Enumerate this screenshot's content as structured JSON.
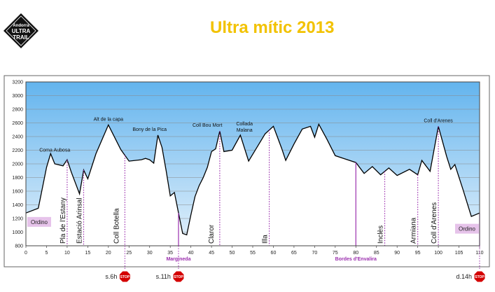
{
  "header": {
    "title": "Ultra mític 2013"
  },
  "logo": {
    "lines": [
      "Andorra",
      "ULTRA",
      "TRAIL"
    ]
  },
  "colors": {
    "title": "#f2c200",
    "profile": "#000000",
    "marker": "#9b2fae",
    "stop": "#d40000",
    "label_box": "#e6c3ea"
  },
  "chart_data": {
    "type": "area",
    "title": "",
    "xlabel": "",
    "ylabel": "",
    "xlim": [
      0,
      110
    ],
    "ylim": [
      800,
      3200
    ],
    "x_ticks": [
      0,
      5,
      10,
      15,
      20,
      25,
      30,
      35,
      40,
      45,
      50,
      55,
      60,
      65,
      70,
      75,
      80,
      85,
      90,
      95,
      100,
      105,
      110
    ],
    "y_ticks": [
      800,
      1000,
      1200,
      1400,
      1600,
      1800,
      2000,
      2200,
      2400,
      2600,
      2800,
      3000,
      3200
    ],
    "grid": true,
    "series": [
      {
        "x": [
          0,
          3,
          5,
          6,
          7,
          9,
          10,
          11,
          12,
          13,
          14,
          15,
          17,
          20,
          23,
          25,
          28,
          29,
          30,
          31,
          32,
          33,
          34,
          35,
          36,
          37,
          38,
          39,
          40,
          41,
          42,
          43,
          44,
          45,
          46,
          47,
          48,
          50,
          52,
          54,
          56,
          58,
          60,
          62,
          63,
          65,
          67,
          69,
          70,
          71,
          73,
          75,
          77,
          80,
          82,
          84,
          86,
          88,
          90,
          93,
          95,
          96,
          98,
          100,
          102,
          103,
          104,
          106,
          108,
          110
        ],
        "y": [
          1280,
          1350,
          1950,
          2150,
          2000,
          1970,
          2060,
          1880,
          1720,
          1560,
          1910,
          1780,
          2150,
          2570,
          2210,
          2040,
          2060,
          2080,
          2060,
          2010,
          2420,
          2240,
          1900,
          1530,
          1580,
          1280,
          980,
          960,
          1250,
          1520,
          1680,
          1800,
          1950,
          2180,
          2220,
          2480,
          2180,
          2200,
          2420,
          2040,
          2240,
          2440,
          2550,
          2230,
          2050,
          2290,
          2510,
          2550,
          2390,
          2580,
          2360,
          2120,
          2080,
          2020,
          1860,
          1960,
          1840,
          1940,
          1830,
          1920,
          1840,
          2050,
          1890,
          2550,
          2110,
          1920,
          1990,
          1620,
          1230,
          1280
        ]
      }
    ],
    "peak_labels": [
      {
        "text": "Coma Aubosa",
        "x": 7,
        "y": 2150
      },
      {
        "text": "Alt de la capa",
        "x": 20,
        "y": 2570
      },
      {
        "text": "Bony de la Pica",
        "x": 30,
        "y": 2420
      },
      {
        "text": "Coll Bou Mort",
        "x": 44,
        "y": 2480
      },
      {
        "text": "Collada",
        "x": 53,
        "y": 2420
      },
      {
        "text": "Malana",
        "x": 53,
        "y": 2420
      },
      {
        "text": "Coll d'Arenes",
        "x": 100,
        "y": 2550
      }
    ],
    "point_labels": [
      {
        "text": "Pla de l'Estany",
        "x": 10
      },
      {
        "text": "Estació Arinsal",
        "x": 14
      },
      {
        "text": "Coll Botella",
        "x": 23
      },
      {
        "text": "Claror",
        "x": 46
      },
      {
        "text": "Illa",
        "x": 59
      },
      {
        "text": "Inclès",
        "x": 87
      },
      {
        "text": "Armiana",
        "x": 95
      },
      {
        "text": "Coll d'Arenes",
        "x": 100
      }
    ],
    "markers": [
      {
        "x": 10,
        "dotted": true,
        "label": ""
      },
      {
        "x": 14,
        "dotted": true,
        "label": ""
      },
      {
        "x": 24,
        "dotted": true,
        "label": ""
      },
      {
        "x": 37,
        "dotted": false,
        "label": "Margineda"
      },
      {
        "x": 47,
        "dotted": true,
        "label": ""
      },
      {
        "x": 59,
        "dotted": true,
        "label": ""
      },
      {
        "x": 80,
        "dotted": false,
        "label": "Bordes d'Envalira"
      },
      {
        "x": 87,
        "dotted": true,
        "label": ""
      },
      {
        "x": 95,
        "dotted": true,
        "label": ""
      },
      {
        "x": 100,
        "dotted": true,
        "label": ""
      },
      {
        "x": 110,
        "dotted": false,
        "label": ""
      }
    ],
    "end_labels": [
      {
        "text": "Ordino",
        "x": 0
      },
      {
        "text": "Ordino",
        "x": 110
      }
    ],
    "stops": [
      {
        "text": "s.6h",
        "x": 24,
        "sign": "STOP"
      },
      {
        "text": "s.11h",
        "x": 37,
        "sign": "STOP"
      },
      {
        "text": "d.14h",
        "x": 110,
        "sign": "STOP"
      }
    ]
  }
}
